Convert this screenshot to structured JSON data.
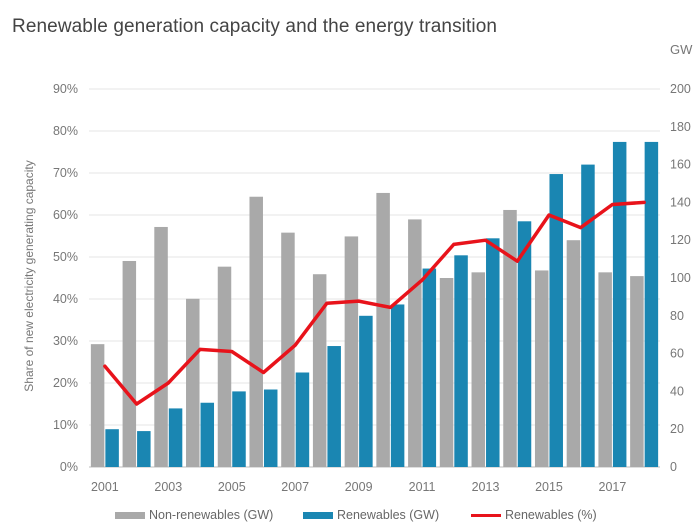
{
  "title": "Renewable generation capacity and the energy transition",
  "colors": {
    "nonrenewables": "#a9a9a9",
    "renewables": "#1a86b2",
    "renewables_pct": "#e8131b",
    "grid": "#e6e6e6"
  },
  "chart_data": {
    "type": "bar",
    "title": "Renewable generation capacity and the energy transition",
    "ylabel": "Share of new electricity generating capacity",
    "y2label": "GW",
    "ylim": [
      0,
      90
    ],
    "y2lim": [
      0,
      200
    ],
    "grid": true,
    "legend_position": "bottom",
    "yticks": [
      "0%",
      "10%",
      "20%",
      "30%",
      "40%",
      "50%",
      "60%",
      "70%",
      "80%",
      "90%"
    ],
    "y2ticks": [
      "0",
      "20",
      "40",
      "60",
      "80",
      "100",
      "120",
      "140",
      "160",
      "180",
      "200"
    ],
    "categories": [
      "2001",
      "2002",
      "2003",
      "2004",
      "2005",
      "2006",
      "2007",
      "2008",
      "2009",
      "2010",
      "2011",
      "2012",
      "2013",
      "2014",
      "2015",
      "2016",
      "2017",
      "2018"
    ],
    "xticks": [
      "2001",
      "2003",
      "2005",
      "2007",
      "2009",
      "2011",
      "2013",
      "2015",
      "2017"
    ],
    "series": [
      {
        "name": "Non-renewables (GW)",
        "type": "bar",
        "axis": "right",
        "values": [
          65,
          109,
          127,
          89,
          106,
          143,
          124,
          102,
          122,
          145,
          131,
          100,
          103,
          136,
          104,
          120,
          103,
          101
        ]
      },
      {
        "name": "Renewables (GW)",
        "type": "bar",
        "axis": "right",
        "values": [
          20,
          19,
          31,
          34,
          40,
          41,
          50,
          64,
          80,
          86,
          105,
          112,
          121,
          130,
          155,
          160,
          172,
          172
        ]
      },
      {
        "name": "Renewables (%)",
        "type": "line",
        "axis": "left",
        "values": [
          24,
          15,
          20,
          28,
          27.5,
          22.5,
          29,
          39,
          39.5,
          38,
          44.5,
          53,
          54,
          49,
          60,
          57,
          62.5,
          63
        ]
      }
    ]
  }
}
